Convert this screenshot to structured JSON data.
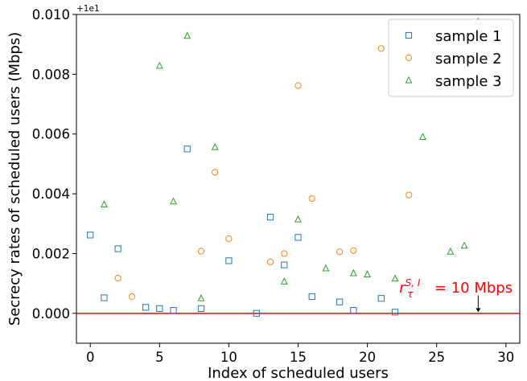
{
  "chart_data": {
    "type": "scatter",
    "title": "",
    "xlabel": "Index of scheduled users",
    "ylabel": "Secrecy rates of scheduled users (Mbps)",
    "y_offset_label": "+1e1",
    "xlim": [
      -1,
      31
    ],
    "ylim": [
      -0.001,
      0.01
    ],
    "xticks": [
      0,
      5,
      10,
      15,
      20,
      25,
      30
    ],
    "yticks": [
      0.0,
      0.002,
      0.004,
      0.006,
      0.008,
      0.01
    ],
    "ytick_labels": [
      "0.000",
      "0.002",
      "0.004",
      "0.006",
      "0.008",
      "0.010"
    ],
    "grid": false,
    "legend_position": "top-right",
    "series": [
      {
        "name": "sample 1",
        "marker": "square",
        "color": "#1f77b4",
        "x": [
          0,
          1,
          2,
          4,
          5,
          6,
          7,
          8,
          10,
          12,
          13,
          14,
          15,
          16,
          18,
          19,
          21,
          22
        ],
        "y": [
          0.00262,
          0.00052,
          0.00216,
          0.0002,
          0.00016,
          0.0001,
          0.0055,
          0.00016,
          0.00176,
          0.0,
          0.00322,
          0.00162,
          0.00254,
          0.00056,
          0.00038,
          0.0001,
          0.0005,
          4e-05
        ]
      },
      {
        "name": "sample 2",
        "marker": "circle",
        "color": "#ff7f0e",
        "x": [
          2,
          3,
          8,
          9,
          10,
          13,
          14,
          15,
          16,
          18,
          19,
          21,
          23
        ],
        "y": [
          0.00118,
          0.00056,
          0.00208,
          0.00472,
          0.0025,
          0.00172,
          0.002,
          0.00762,
          0.00384,
          0.00206,
          0.0021,
          0.00886,
          0.00396
        ]
      },
      {
        "name": "sample 3",
        "marker": "triangle",
        "color": "#2ca02c",
        "x": [
          1,
          5,
          6,
          7,
          8,
          9,
          14,
          15,
          17,
          19,
          20,
          22,
          24,
          26,
          27,
          28
        ],
        "y": [
          0.00364,
          0.00828,
          0.00374,
          0.00928,
          0.0005,
          0.00556,
          0.00106,
          0.00314,
          0.0015,
          0.00134,
          0.0013,
          0.00116,
          0.0059,
          0.00206,
          0.00226,
          0.00976
        ]
      }
    ],
    "reference_line": {
      "y": 0.0,
      "color": "#ff0000"
    },
    "annotation": {
      "text_main": "r",
      "text_sup": "S, I",
      "text_sub": "τ",
      "text_rest": " = 10 Mbps",
      "color": "#ff0000",
      "arrow_x": 28,
      "arrow_y_top": 0.0006,
      "arrow_y_bottom": 4e-05,
      "text_x": 22.3,
      "text_y": 0.0007
    }
  }
}
